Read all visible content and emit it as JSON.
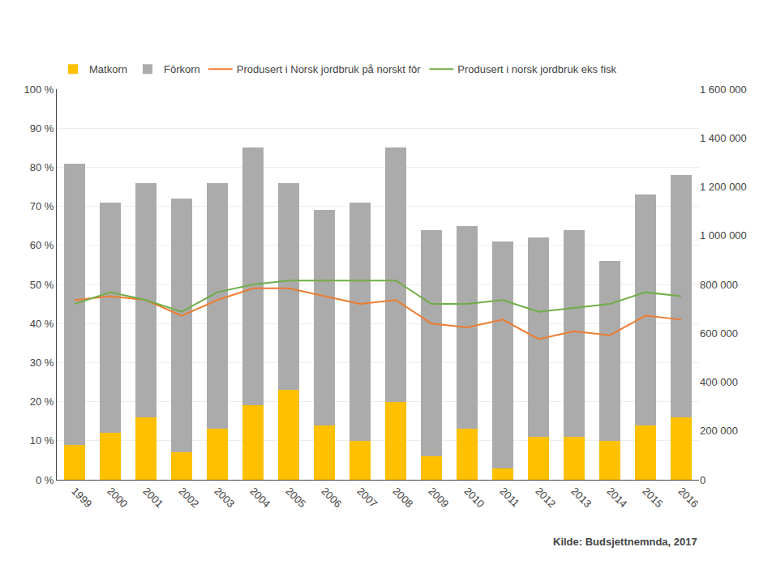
{
  "chart_data": {
    "type": "bar",
    "stacked": true,
    "grid": true,
    "legend": "top",
    "categories": [
      "1999",
      "2000",
      "2001",
      "2002",
      "2003",
      "2004",
      "2005",
      "2006",
      "2007",
      "2008",
      "2009",
      "2010",
      "2011",
      "2012",
      "2013",
      "2014",
      "2015",
      "2016"
    ],
    "series": [
      {
        "name": "Matkorn",
        "type": "bar",
        "color": "#FFC000",
        "values": [
          9,
          12,
          16,
          7,
          13,
          19,
          23,
          14,
          10,
          20,
          6,
          13,
          3,
          11,
          11,
          10,
          14,
          16
        ]
      },
      {
        "name": "Fôrkorn",
        "type": "bar",
        "color": "#ABABAB",
        "values": [
          72,
          59,
          60,
          65,
          63,
          66,
          53,
          55,
          61,
          65,
          58,
          52,
          58,
          51,
          53,
          46,
          59,
          62
        ]
      },
      {
        "name": "Produsert i Norsk jordbruk på norskt fôr",
        "type": "line",
        "color": "#ED7D31",
        "values": [
          46,
          47,
          46,
          42,
          46,
          49,
          49,
          47,
          45,
          46,
          40,
          39,
          41,
          36,
          38,
          37,
          42,
          41
        ]
      },
      {
        "name": "Produsert i norsk jordbruk eks fisk",
        "type": "line",
        "color": "#70AD47",
        "values": [
          45,
          48,
          46,
          43,
          48,
          50,
          51,
          51,
          51,
          51,
          45,
          45,
          46,
          43,
          44,
          45,
          48,
          47
        ]
      }
    ],
    "ylim": [
      0,
      100
    ],
    "yticks": [
      {
        "value": 0,
        "label": "0 %"
      },
      {
        "value": 10,
        "label": "10 %"
      },
      {
        "value": 20,
        "label": "20 %"
      },
      {
        "value": 30,
        "label": "30 %"
      },
      {
        "value": 40,
        "label": "40 %"
      },
      {
        "value": 50,
        "label": "50 %"
      },
      {
        "value": 60,
        "label": "60 %"
      },
      {
        "value": 70,
        "label": "70 %"
      },
      {
        "value": 80,
        "label": "80 %"
      },
      {
        "value": 90,
        "label": "90 %"
      },
      {
        "value": 100,
        "label": "100 %"
      }
    ],
    "y2lim": [
      0,
      1600000
    ],
    "y2ticks": [
      0,
      {
        "value": 200000,
        "label": "200 000"
      },
      {
        "value": 400000,
        "label": "400 000"
      },
      {
        "value": 600000,
        "label": "600 000"
      },
      {
        "value": 800000,
        "label": "800 000"
      },
      {
        "value": 1000000,
        "label": "1 000 000"
      },
      {
        "value": 1200000,
        "label": "1 200 000"
      },
      {
        "value": 1400000,
        "label": "1 400 000"
      },
      {
        "value": 1600000,
        "label": "1 600 000"
      }
    ],
    "annotations": [
      {
        "text": "Kilde: Budsjettnemnda, 2017"
      }
    ]
  }
}
